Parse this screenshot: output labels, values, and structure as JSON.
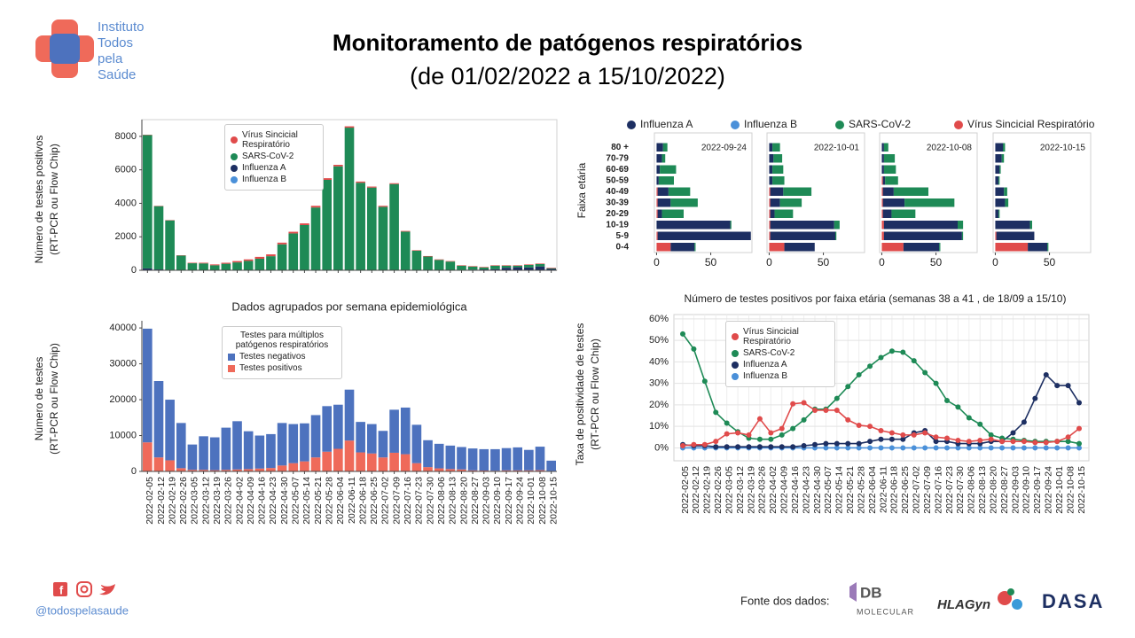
{
  "logo": {
    "lines": [
      "Instituto",
      "Todos",
      "pela",
      "Saúde"
    ]
  },
  "header": {
    "title": "Monitoramento de patógenos respiratórios",
    "subtitle": "(de 01/02/2022 a 15/10/2022)"
  },
  "chart_data": [
    {
      "type": "stacked_bar",
      "ylabel": [
        "Número de testes positivos",
        "(RT-PCR ou Flow Chip)"
      ],
      "ylim": [
        0,
        9000
      ],
      "yticks": [
        0,
        2000,
        4000,
        6000,
        8000
      ],
      "legend": "upper center",
      "series": [
        {
          "name": "Vírus Sincicial Respiratório",
          "color": "#e04b4b",
          "values": [
            20,
            20,
            20,
            20,
            30,
            40,
            50,
            60,
            80,
            90,
            110,
            110,
            100,
            100,
            100,
            100,
            100,
            90,
            80,
            70,
            60,
            60,
            50,
            40,
            30,
            30,
            30,
            30,
            30,
            30,
            30,
            30,
            30,
            30,
            30,
            30,
            30
          ]
        },
        {
          "name": "SARS-CoV-2",
          "color": "#1e8a56",
          "values": [
            7970,
            3780,
            2950,
            860,
            400,
            390,
            280,
            370,
            450,
            540,
            670,
            820,
            1530,
            2180,
            2680,
            3730,
            5380,
            6190,
            8500,
            5210,
            4920,
            3770,
            5130,
            2290,
            1150,
            800,
            600,
            500,
            240,
            180,
            120,
            200,
            120,
            90,
            150,
            140,
            40
          ]
        },
        {
          "name": "Influenza A",
          "color": "#1d2f62",
          "values": [
            100,
            40,
            20,
            10,
            10,
            10,
            10,
            10,
            10,
            10,
            10,
            10,
            10,
            10,
            10,
            10,
            10,
            10,
            10,
            10,
            10,
            10,
            10,
            10,
            10,
            10,
            10,
            10,
            20,
            30,
            40,
            60,
            140,
            170,
            160,
            220,
            70
          ]
        },
        {
          "name": "Influenza B",
          "color": "#4a90d9",
          "values": [
            10,
            10,
            10,
            10,
            10,
            10,
            10,
            10,
            10,
            10,
            10,
            10,
            10,
            10,
            10,
            10,
            10,
            10,
            10,
            10,
            10,
            10,
            10,
            10,
            10,
            10,
            10,
            10,
            10,
            10,
            10,
            10,
            10,
            10,
            10,
            10,
            10
          ]
        }
      ]
    },
    {
      "type": "stacked_bar",
      "title": "Dados agrupados por semana epidemiológica",
      "ylabel": [
        "Número de testes",
        "(RT-PCR ou Flow Chip)"
      ],
      "legend_title": [
        "Testes para múltiplos",
        "patógenos respiratórios"
      ],
      "ylim": [
        0,
        42000
      ],
      "yticks": [
        0,
        10000,
        20000,
        30000,
        40000
      ],
      "legend": "upper center",
      "categories": [
        "2022-02-05",
        "2022-02-12",
        "2022-02-19",
        "2022-02-26",
        "2022-03-05",
        "2022-03-12",
        "2022-03-19",
        "2022-03-26",
        "2022-04-02",
        "2022-04-09",
        "2022-04-16",
        "2022-04-23",
        "2022-04-30",
        "2022-05-07",
        "2022-05-14",
        "2022-05-21",
        "2022-05-28",
        "2022-06-04",
        "2022-06-11",
        "2022-06-18",
        "2022-06-25",
        "2022-07-02",
        "2022-07-09",
        "2022-07-16",
        "2022-07-23",
        "2022-07-30",
        "2022-08-06",
        "2022-08-13",
        "2022-08-20",
        "2022-08-27",
        "2022-09-03",
        "2022-09-10",
        "2022-09-17",
        "2022-09-24",
        "2022-10-01",
        "2022-10-08",
        "2022-10-15"
      ],
      "series": [
        {
          "name": "Testes negativos",
          "color": "#4d72be",
          "values": [
            31700,
            21300,
            16900,
            12600,
            7050,
            9350,
            9150,
            11750,
            13450,
            10550,
            9200,
            9450,
            11850,
            10900,
            10600,
            11800,
            12700,
            12300,
            14200,
            8500,
            8200,
            7400,
            12000,
            13000,
            10700,
            7500,
            6850,
            6550,
            6250,
            6100,
            5950,
            6000,
            6200,
            6400,
            5700,
            6550,
            2850
          ]
        },
        {
          "name": "Testes positivos",
          "color": "#ef6a5a",
          "values": [
            8100,
            3900,
            3100,
            900,
            450,
            450,
            350,
            450,
            550,
            650,
            800,
            950,
            1650,
            2300,
            2800,
            3900,
            5500,
            6300,
            8600,
            5300,
            5000,
            3900,
            5200,
            4800,
            2300,
            1200,
            850,
            650,
            550,
            300,
            250,
            200,
            300,
            300,
            300,
            350,
            150
          ]
        }
      ]
    },
    {
      "type": "hbar_panels",
      "title": "Número de testes positivos por faixa etária (semanas 38 a 41 , de 18/09 a 15/10)",
      "ylabel": "Faixa etária",
      "categories": [
        "80 +",
        "70-79",
        "60-69",
        "50-59",
        "40-49",
        "30-39",
        "20-29",
        "10-19",
        "5-9",
        "0-4"
      ],
      "xlim": [
        -2,
        88
      ],
      "xticks": [
        0,
        50
      ],
      "series": [
        {
          "name": "Influenza A",
          "color": "#1d2f62"
        },
        {
          "name": "Influenza B",
          "color": "#4a90d9"
        },
        {
          "name": "SARS-CoV-2",
          "color": "#1e8a56"
        },
        {
          "name": "Vírus Sincicial Respiratório",
          "color": "#e04b4b"
        }
      ],
      "panels": [
        {
          "label": "2022-09-24",
          "values": [
            [
              6,
              5,
              3,
              2,
              10,
              12,
              4,
              68,
              86,
              22
            ],
            [
              0,
              0,
              0,
              0,
              0,
              0,
              0,
              0,
              0,
              0
            ],
            [
              4,
              3,
              15,
              14,
              20,
              25,
              20,
              1,
              0,
              1
            ],
            [
              0,
              0,
              0,
              0,
              1,
              1,
              1,
              0,
              1,
              13
            ]
          ]
        },
        {
          "label": "2022-10-01",
          "values": [
            [
              3,
              4,
              3,
              3,
              12,
              9,
              4,
              59,
              60,
              28
            ],
            [
              0,
              0,
              0,
              0,
              0,
              0,
              0,
              0,
              0,
              0
            ],
            [
              7,
              8,
              10,
              11,
              26,
              20,
              17,
              5,
              1,
              0
            ],
            [
              0,
              0,
              0,
              0,
              1,
              1,
              1,
              1,
              1,
              14
            ]
          ]
        },
        {
          "label": "2022-10-08",
          "values": [
            [
              2,
              2,
              2,
              2,
              10,
              20,
              8,
              68,
              72,
              33
            ],
            [
              0,
              0,
              0,
              0,
              0,
              0,
              0,
              0,
              0,
              0
            ],
            [
              4,
              10,
              11,
              12,
              32,
              46,
              22,
              5,
              1,
              1
            ],
            [
              0,
              0,
              0,
              1,
              1,
              1,
              1,
              2,
              2,
              20
            ]
          ]
        },
        {
          "label": "2022-10-15",
          "values": [
            [
              7,
              6,
              4,
              3,
              8,
              9,
              3,
              32,
              35,
              18
            ],
            [
              0,
              0,
              0,
              0,
              0,
              0,
              0,
              0,
              0,
              0
            ],
            [
              2,
              2,
              1,
              1,
              3,
              3,
              1,
              2,
              0,
              1
            ],
            [
              0,
              0,
              0,
              0,
              0,
              0,
              0,
              0,
              1,
              30
            ]
          ]
        }
      ]
    },
    {
      "type": "line",
      "ylabel": [
        "Taxa de positividade de testes",
        "(RT-PCR ou Flow Chip)"
      ],
      "ylim": [
        -6,
        62
      ],
      "grid": true,
      "legend": "upper left",
      "yticks": [
        {
          "value": 0,
          "label": "0%"
        },
        {
          "value": 10,
          "label": "10%"
        },
        {
          "value": 20,
          "label": "20%"
        },
        {
          "value": 30,
          "label": "30%"
        },
        {
          "value": 40,
          "label": "40%"
        },
        {
          "value": 50,
          "label": "50%"
        },
        {
          "value": 60,
          "label": "60%"
        }
      ],
      "categories": [
        "2022-02-05",
        "2022-02-12",
        "2022-02-19",
        "2022-02-26",
        "2022-03-05",
        "2022-03-12",
        "2022-03-19",
        "2022-03-26",
        "2022-04-02",
        "2022-04-09",
        "2022-04-16",
        "2022-04-23",
        "2022-04-30",
        "2022-05-07",
        "2022-05-14",
        "2022-05-21",
        "2022-05-28",
        "2022-06-04",
        "2022-06-11",
        "2022-06-18",
        "2022-06-25",
        "2022-07-02",
        "2022-07-09",
        "2022-07-16",
        "2022-07-23",
        "2022-07-30",
        "2022-08-06",
        "2022-08-13",
        "2022-08-20",
        "2022-08-27",
        "2022-09-03",
        "2022-09-10",
        "2022-09-17",
        "2022-09-24",
        "2022-10-01",
        "2022-10-08",
        "2022-10-15"
      ],
      "series": [
        {
          "name": "Vírus Sincicial Respiratório",
          "color": "#e04b4b",
          "values": [
            1,
            1.5,
            1.5,
            3,
            6.5,
            7,
            6,
            13.5,
            7,
            9,
            20.5,
            21,
            17.5,
            17.5,
            17.5,
            13,
            10.5,
            10,
            8,
            7,
            6,
            6,
            7,
            5,
            4.5,
            3.5,
            3,
            3.5,
            4,
            3,
            3,
            3,
            2.5,
            2.5,
            3,
            5,
            9
          ]
        },
        {
          "name": "SARS-CoV-2",
          "color": "#1e8a56",
          "values": [
            53,
            46,
            31,
            16.5,
            11.5,
            7.5,
            4.5,
            4,
            4,
            6,
            9,
            13,
            18,
            18,
            23,
            28.5,
            34,
            38,
            42,
            45,
            44.5,
            40.5,
            35,
            30,
            22,
            19,
            14,
            11,
            6,
            4.5,
            4,
            3.5,
            3,
            3,
            3,
            3,
            2
          ]
        },
        {
          "name": "Influenza A",
          "color": "#1d2f62",
          "values": [
            1.5,
            1,
            1,
            0.5,
            0.5,
            0.5,
            0.5,
            0.5,
            0.5,
            0.5,
            0.5,
            1,
            1.5,
            2,
            2,
            2,
            2,
            3,
            4,
            4,
            4,
            7,
            8,
            3,
            3,
            2,
            2,
            2,
            3,
            3,
            7,
            12,
            23,
            34,
            29,
            29,
            21
          ]
        },
        {
          "name": "Influenza B",
          "color": "#4a90d9",
          "values": [
            0,
            0,
            0,
            0,
            0,
            0,
            0,
            0,
            0,
            0,
            0,
            0,
            0,
            0,
            0,
            0,
            0,
            0,
            0,
            0,
            0,
            0,
            0,
            0,
            0,
            0,
            0,
            0,
            0,
            0,
            0,
            0,
            0,
            0,
            0,
            0,
            0
          ]
        }
      ]
    }
  ],
  "footer": {
    "handle": "@todospelasaude",
    "source_label": "Fonte dos dados:",
    "sources": [
      "DB",
      "MOLECULAR",
      "HLAGyn",
      "DASA"
    ]
  }
}
